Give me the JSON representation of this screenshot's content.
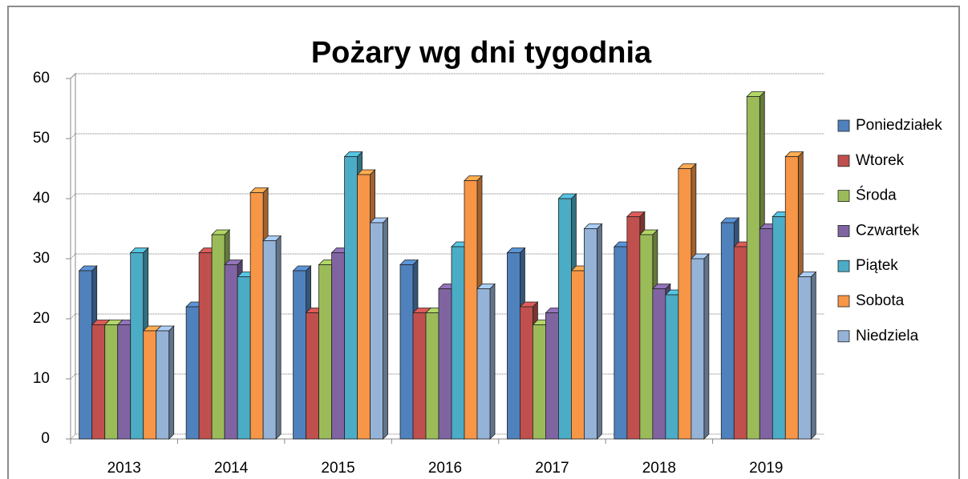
{
  "chart_data": {
    "type": "bar",
    "title": "Pożary wg dni tygodnia",
    "categories": [
      "2013",
      "2014",
      "2015",
      "2016",
      "2017",
      "2018",
      "2019"
    ],
    "series": [
      {
        "name": "Poniedziałek",
        "color": "#4f81bd",
        "values": [
          28,
          22,
          28,
          29,
          31,
          32,
          36
        ]
      },
      {
        "name": "Wtorek",
        "color": "#c0504d",
        "values": [
          19,
          31,
          21,
          21,
          22,
          37,
          32
        ]
      },
      {
        "name": "Środa",
        "color": "#9bbb59",
        "values": [
          19,
          34,
          29,
          21,
          19,
          34,
          57
        ]
      },
      {
        "name": "Czwartek",
        "color": "#8064a2",
        "values": [
          19,
          29,
          31,
          25,
          21,
          25,
          35
        ]
      },
      {
        "name": "Piątek",
        "color": "#4bacc6",
        "values": [
          31,
          27,
          47,
          32,
          40,
          24,
          37
        ]
      },
      {
        "name": "Sobota",
        "color": "#f79646",
        "values": [
          18,
          41,
          44,
          43,
          28,
          45,
          47
        ]
      },
      {
        "name": "Niedziela",
        "color": "#95b3d7",
        "values": [
          18,
          33,
          36,
          25,
          35,
          30,
          27
        ]
      }
    ],
    "ylim": [
      0,
      60
    ],
    "yticks": [
      0,
      10,
      20,
      30,
      40,
      50,
      60
    ],
    "grid": true,
    "legend": "right"
  }
}
